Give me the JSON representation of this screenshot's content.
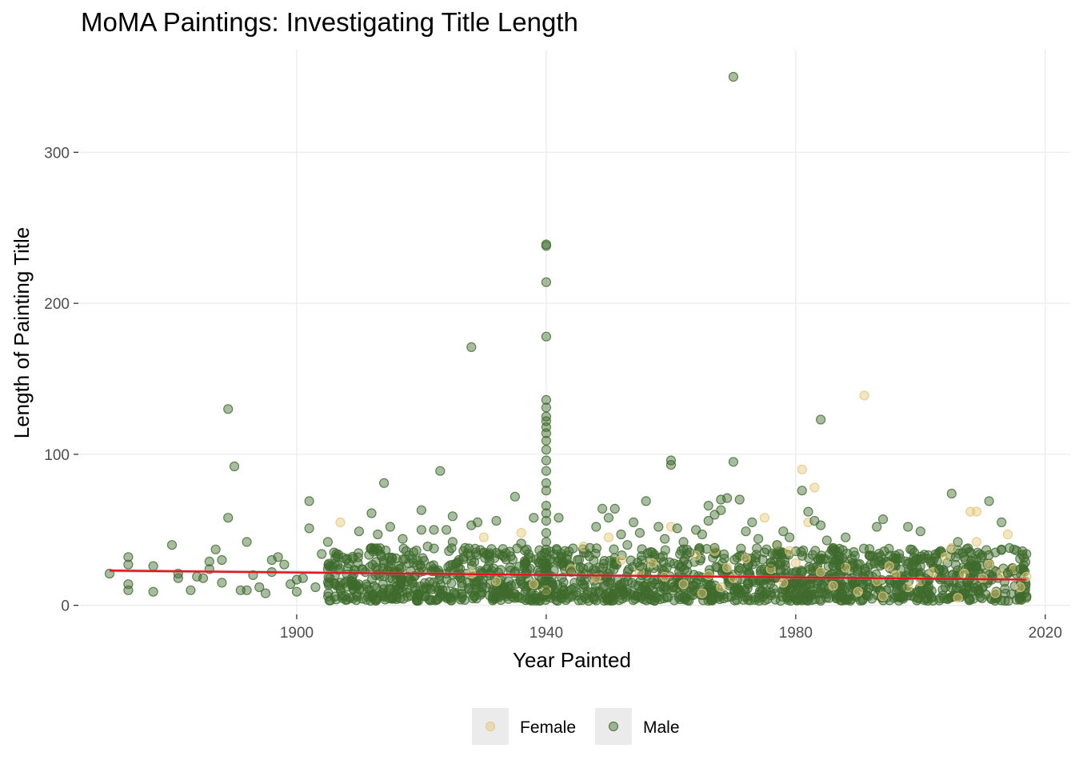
{
  "chart_data": {
    "type": "scatter",
    "title": "MoMA Paintings: Investigating Title Length",
    "xlabel": "Year Painted",
    "ylabel": "Length of Painting Title",
    "xlim": [
      1865,
      2024
    ],
    "ylim": [
      -6,
      368
    ],
    "x_ticks": [
      1900,
      1940,
      1980,
      2020
    ],
    "y_ticks": [
      0,
      100,
      200,
      300
    ],
    "grid": true,
    "legend": {
      "position": "bottom"
    },
    "series": [
      {
        "name": "Female",
        "color": "#e3c77a",
        "points": [
          [
            1907,
            55
          ],
          [
            1928,
            21
          ],
          [
            1930,
            45
          ],
          [
            1932,
            16
          ],
          [
            1936,
            48
          ],
          [
            1938,
            14
          ],
          [
            1940,
            10
          ],
          [
            1944,
            24
          ],
          [
            1946,
            39
          ],
          [
            1948,
            18
          ],
          [
            1950,
            45
          ],
          [
            1952,
            30
          ],
          [
            1955,
            22
          ],
          [
            1957,
            28
          ],
          [
            1959,
            19
          ],
          [
            1960,
            52
          ],
          [
            1962,
            14
          ],
          [
            1964,
            33
          ],
          [
            1965,
            8
          ],
          [
            1966,
            20
          ],
          [
            1967,
            36
          ],
          [
            1968,
            12
          ],
          [
            1969,
            25
          ],
          [
            1970,
            18
          ],
          [
            1972,
            31
          ],
          [
            1975,
            58
          ],
          [
            1976,
            24
          ],
          [
            1977,
            40
          ],
          [
            1978,
            15
          ],
          [
            1979,
            36
          ],
          [
            1980,
            28
          ],
          [
            1981,
            90
          ],
          [
            1982,
            55
          ],
          [
            1983,
            78
          ],
          [
            1984,
            22
          ],
          [
            1986,
            13
          ],
          [
            1988,
            25
          ],
          [
            1990,
            9
          ],
          [
            1991,
            139
          ],
          [
            1993,
            16
          ],
          [
            1994,
            6
          ],
          [
            1995,
            26
          ],
          [
            1996,
            20
          ],
          [
            1998,
            12
          ],
          [
            2000,
            16
          ],
          [
            2002,
            22
          ],
          [
            2004,
            32
          ],
          [
            2005,
            38
          ],
          [
            2006,
            5
          ],
          [
            2007,
            21
          ],
          [
            2008,
            62
          ],
          [
            2009,
            62
          ],
          [
            2009,
            42
          ],
          [
            2010,
            18
          ],
          [
            2011,
            27
          ],
          [
            2012,
            8
          ],
          [
            2013,
            21
          ],
          [
            2014,
            47
          ],
          [
            2015,
            24
          ],
          [
            2016,
            12
          ],
          [
            2017,
            19
          ]
        ]
      },
      {
        "name": "Male",
        "color": "#3e6b2d",
        "points": [
          [
            1870,
            21
          ],
          [
            1873,
            32
          ],
          [
            1873,
            27
          ],
          [
            1873,
            14
          ],
          [
            1873,
            10
          ],
          [
            1877,
            26
          ],
          [
            1877,
            9
          ],
          [
            1880,
            40
          ],
          [
            1881,
            21
          ],
          [
            1881,
            18
          ],
          [
            1883,
            10
          ],
          [
            1884,
            19
          ],
          [
            1885,
            18
          ],
          [
            1886,
            29
          ],
          [
            1886,
            24
          ],
          [
            1887,
            37
          ],
          [
            1888,
            30
          ],
          [
            1888,
            15
          ],
          [
            1889,
            130
          ],
          [
            1889,
            58
          ],
          [
            1890,
            92
          ],
          [
            1891,
            10
          ],
          [
            1892,
            10
          ],
          [
            1892,
            42
          ],
          [
            1893,
            20
          ],
          [
            1894,
            12
          ],
          [
            1895,
            8
          ],
          [
            1896,
            22
          ],
          [
            1896,
            30
          ],
          [
            1897,
            32
          ],
          [
            1898,
            27
          ],
          [
            1899,
            14
          ],
          [
            1900,
            9
          ],
          [
            1900,
            17
          ],
          [
            1901,
            18
          ],
          [
            1902,
            69
          ],
          [
            1902,
            51
          ],
          [
            1903,
            12
          ],
          [
            1904,
            34
          ],
          [
            1905,
            42
          ],
          [
            1905,
            24
          ],
          [
            1906,
            35
          ],
          [
            1908,
            16
          ],
          [
            1909,
            31
          ],
          [
            1910,
            49
          ],
          [
            1911,
            22
          ],
          [
            1912,
            61
          ],
          [
            1912,
            38
          ],
          [
            1913,
            47
          ],
          [
            1914,
            81
          ],
          [
            1914,
            28
          ],
          [
            1915,
            52
          ],
          [
            1916,
            18
          ],
          [
            1917,
            44
          ],
          [
            1918,
            33
          ],
          [
            1919,
            12
          ],
          [
            1920,
            63
          ],
          [
            1920,
            50
          ],
          [
            1921,
            39
          ],
          [
            1922,
            50
          ],
          [
            1922,
            24
          ],
          [
            1923,
            89
          ],
          [
            1924,
            50
          ],
          [
            1925,
            59
          ],
          [
            1925,
            42
          ],
          [
            1926,
            30
          ],
          [
            1927,
            38
          ],
          [
            1928,
            171
          ],
          [
            1928,
            53
          ],
          [
            1929,
            55
          ],
          [
            1930,
            35
          ],
          [
            1931,
            20
          ],
          [
            1932,
            56
          ],
          [
            1933,
            33
          ],
          [
            1934,
            16
          ],
          [
            1935,
            72
          ],
          [
            1936,
            41
          ],
          [
            1937,
            24
          ],
          [
            1938,
            58
          ],
          [
            1939,
            22
          ],
          [
            1940,
            239
          ],
          [
            1940,
            238
          ],
          [
            1940,
            214
          ],
          [
            1940,
            178
          ],
          [
            1940,
            136
          ],
          [
            1940,
            131
          ],
          [
            1940,
            125
          ],
          [
            1940,
            122
          ],
          [
            1940,
            118
          ],
          [
            1940,
            114
          ],
          [
            1940,
            109
          ],
          [
            1940,
            103
          ],
          [
            1940,
            96
          ],
          [
            1940,
            89
          ],
          [
            1940,
            81
          ],
          [
            1940,
            76
          ],
          [
            1940,
            66
          ],
          [
            1940,
            61
          ],
          [
            1940,
            56
          ],
          [
            1940,
            48
          ],
          [
            1940,
            42
          ],
          [
            1940,
            37
          ],
          [
            1940,
            31
          ],
          [
            1940,
            26
          ],
          [
            1940,
            20
          ],
          [
            1940,
            14
          ],
          [
            1940,
            8
          ],
          [
            1942,
            58
          ],
          [
            1943,
            36
          ],
          [
            1944,
            22
          ],
          [
            1945,
            30
          ],
          [
            1946,
            12
          ],
          [
            1947,
            38
          ],
          [
            1948,
            52
          ],
          [
            1949,
            64
          ],
          [
            1950,
            58
          ],
          [
            1951,
            64
          ],
          [
            1952,
            47
          ],
          [
            1953,
            40
          ],
          [
            1954,
            55
          ],
          [
            1955,
            48
          ],
          [
            1955,
            26
          ],
          [
            1956,
            69
          ],
          [
            1957,
            35
          ],
          [
            1958,
            52
          ],
          [
            1959,
            44
          ],
          [
            1960,
            96
          ],
          [
            1960,
            93
          ],
          [
            1961,
            51
          ],
          [
            1962,
            42
          ],
          [
            1963,
            35
          ],
          [
            1964,
            50
          ],
          [
            1965,
            47
          ],
          [
            1966,
            66
          ],
          [
            1966,
            56
          ],
          [
            1967,
            60
          ],
          [
            1967,
            38
          ],
          [
            1968,
            70
          ],
          [
            1968,
            63
          ],
          [
            1969,
            71
          ],
          [
            1970,
            350
          ],
          [
            1970,
            95
          ],
          [
            1971,
            70
          ],
          [
            1972,
            49
          ],
          [
            1973,
            55
          ],
          [
            1974,
            44
          ],
          [
            1975,
            35
          ],
          [
            1976,
            28
          ],
          [
            1977,
            40
          ],
          [
            1978,
            49
          ],
          [
            1979,
            45
          ],
          [
            1980,
            22
          ],
          [
            1981,
            76
          ],
          [
            1982,
            62
          ],
          [
            1983,
            56
          ],
          [
            1984,
            123
          ],
          [
            1984,
            53
          ],
          [
            1985,
            43
          ],
          [
            1986,
            38
          ],
          [
            1987,
            27
          ],
          [
            1988,
            45
          ],
          [
            1989,
            31
          ],
          [
            1990,
            24
          ],
          [
            1991,
            18
          ],
          [
            1992,
            27
          ],
          [
            1993,
            52
          ],
          [
            1994,
            57
          ],
          [
            1995,
            17
          ],
          [
            1996,
            33
          ],
          [
            1997,
            12
          ],
          [
            1998,
            52
          ],
          [
            1999,
            35
          ],
          [
            2000,
            49
          ],
          [
            2000,
            26
          ],
          [
            2001,
            16
          ],
          [
            2002,
            29
          ],
          [
            2003,
            24
          ],
          [
            2004,
            12
          ],
          [
            2005,
            74
          ],
          [
            2006,
            42
          ],
          [
            2007,
            32
          ],
          [
            2008,
            18
          ],
          [
            2009,
            26
          ],
          [
            2010,
            12
          ],
          [
            2011,
            69
          ],
          [
            2012,
            35
          ],
          [
            2013,
            55
          ],
          [
            2014,
            21
          ],
          [
            2015,
            37
          ],
          [
            2016,
            24
          ],
          [
            2017,
            6
          ]
        ]
      }
    ],
    "dense_band": {
      "series": "Male",
      "x_range": [
        1905,
        2017
      ],
      "y_range": [
        3,
        38
      ]
    },
    "trend_line": {
      "color": "#e8141d",
      "points": [
        [
          1870,
          23
        ],
        [
          2017,
          17
        ]
      ]
    }
  }
}
